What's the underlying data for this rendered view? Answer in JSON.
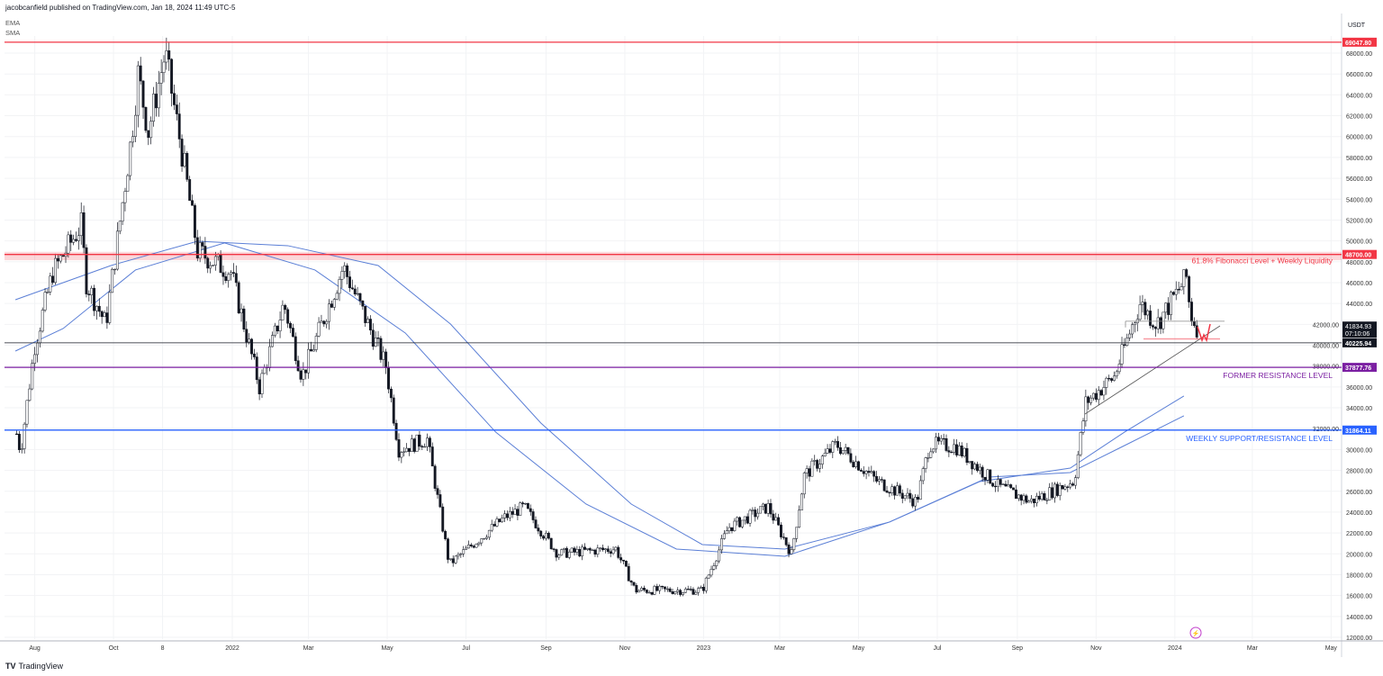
{
  "header": {
    "published": "jacobcanfield published on TradingView.com, Jan 18, 2024 11:49 UTC-5"
  },
  "legend": [
    "EMA",
    "SMA"
  ],
  "footer": {
    "logo_text": "TradingView",
    "logo_mark": "TV"
  },
  "colors": {
    "red": "#f23645",
    "purple": "#7b1fa2",
    "blue": "#2962ff",
    "ma": "#5b7fd6",
    "gray": "#787b86"
  },
  "chart_data": {
    "type": "candlestick",
    "currency": "USDT",
    "ylim": [
      12000,
      70000
    ],
    "y_ticks": [
      "68000.00",
      "66000.00",
      "64000.00",
      "62000.00",
      "60000.00",
      "58000.00",
      "56000.00",
      "54000.00",
      "52000.00",
      "50000.00",
      "48000.00",
      "46000.00",
      "44000.00",
      "42000.00",
      "40000.00",
      "38000.00",
      "36000.00",
      "34000.00",
      "32000.00",
      "30000.00",
      "28000.00",
      "26000.00",
      "24000.00",
      "22000.00",
      "20000.00",
      "18000.00",
      "16000.00",
      "14000.00",
      "12000.00"
    ],
    "x_ticks": [
      {
        "label": "Aug",
        "date": "2021-08-01"
      },
      {
        "label": "Oct",
        "date": "2021-10-01"
      },
      {
        "label": "8",
        "date": "2021-11-08"
      },
      {
        "label": "2022",
        "date": "2022-01-01"
      },
      {
        "label": "Mar",
        "date": "2022-03-01"
      },
      {
        "label": "May",
        "date": "2022-05-01"
      },
      {
        "label": "Jul",
        "date": "2022-07-01"
      },
      {
        "label": "Sep",
        "date": "2022-09-01"
      },
      {
        "label": "Nov",
        "date": "2022-11-01"
      },
      {
        "label": "2023",
        "date": "2023-01-01"
      },
      {
        "label": "Mar",
        "date": "2023-03-01"
      },
      {
        "label": "May",
        "date": "2023-05-01"
      },
      {
        "label": "Jul",
        "date": "2023-07-01"
      },
      {
        "label": "Sep",
        "date": "2023-09-01"
      },
      {
        "label": "Nov",
        "date": "2023-11-01"
      },
      {
        "label": "2024",
        "date": "2024-01-01"
      },
      {
        "label": "Mar",
        "date": "2024-03-01"
      },
      {
        "label": "May",
        "date": "2024-05-01"
      }
    ],
    "price_path": [
      [
        "2021-07-18",
        31500
      ],
      [
        "2021-07-21",
        29800
      ],
      [
        "2021-08-01",
        40000
      ],
      [
        "2021-08-15",
        47000
      ],
      [
        "2021-09-06",
        51500
      ],
      [
        "2021-09-10",
        46000
      ],
      [
        "2021-09-25",
        42000
      ],
      [
        "2021-10-15",
        60000
      ],
      [
        "2021-10-20",
        66000
      ],
      [
        "2021-10-28",
        60500
      ],
      [
        "2021-11-10",
        68000
      ],
      [
        "2021-11-25",
        57000
      ],
      [
        "2021-12-05",
        49000
      ],
      [
        "2021-12-31",
        47000
      ],
      [
        "2022-01-22",
        36000
      ],
      [
        "2022-02-10",
        44000
      ],
      [
        "2022-02-24",
        37000
      ],
      [
        "2022-03-28",
        47500
      ],
      [
        "2022-04-30",
        38000
      ],
      [
        "2022-05-10",
        30000
      ],
      [
        "2022-06-01",
        31000
      ],
      [
        "2022-06-18",
        19000
      ],
      [
        "2022-07-31",
        23500
      ],
      [
        "2022-08-15",
        24500
      ],
      [
        "2022-09-10",
        20000
      ],
      [
        "2022-10-25",
        20500
      ],
      [
        "2022-11-09",
        16500
      ],
      [
        "2022-12-31",
        16500
      ],
      [
        "2023-01-20",
        22500
      ],
      [
        "2023-02-20",
        24500
      ],
      [
        "2023-03-10",
        20000
      ],
      [
        "2023-03-20",
        27500
      ],
      [
        "2023-04-14",
        30500
      ],
      [
        "2023-05-15",
        27000
      ],
      [
        "2023-06-15",
        25000
      ],
      [
        "2023-06-25",
        30500
      ],
      [
        "2023-07-15",
        30300
      ],
      [
        "2023-08-17",
        26500
      ],
      [
        "2023-09-11",
        25000
      ],
      [
        "2023-10-15",
        27000
      ],
      [
        "2023-10-24",
        34500
      ],
      [
        "2023-11-15",
        37000
      ],
      [
        "2023-12-05",
        44000
      ],
      [
        "2023-12-18",
        42000
      ],
      [
        "2024-01-10",
        46500
      ],
      [
        "2024-01-13",
        43000
      ],
      [
        "2024-01-18",
        41800
      ]
    ],
    "series": [
      {
        "name": "EMA",
        "points": [
          [
            "2021-07-17",
            44360
          ],
          [
            "2021-09-29",
            47640
          ],
          [
            "2021-12-05",
            49970
          ],
          [
            "2022-02-13",
            49540
          ],
          [
            "2022-04-24",
            47640
          ],
          [
            "2022-06-19",
            42030
          ],
          [
            "2022-08-28",
            32540
          ],
          [
            "2022-11-06",
            24770
          ],
          [
            "2022-12-31",
            20890
          ],
          [
            "2023-03-05",
            20460
          ],
          [
            "2023-05-25",
            23050
          ],
          [
            "2023-08-03",
            26930
          ],
          [
            "2023-10-12",
            28220
          ],
          [
            "2023-11-23",
            31670
          ],
          [
            "2024-01-08",
            35130
          ]
        ]
      },
      {
        "name": "SMA",
        "points": [
          [
            "2021-07-17",
            39440
          ],
          [
            "2021-08-23",
            41600
          ],
          [
            "2021-10-18",
            47210
          ],
          [
            "2021-12-26",
            49800
          ],
          [
            "2022-03-06",
            47210
          ],
          [
            "2022-05-15",
            41170
          ],
          [
            "2022-07-24",
            31670
          ],
          [
            "2022-10-02",
            24770
          ],
          [
            "2022-12-11",
            20460
          ],
          [
            "2023-03-05",
            19770
          ],
          [
            "2023-05-25",
            23050
          ],
          [
            "2023-08-10",
            27360
          ],
          [
            "2023-10-12",
            27790
          ],
          [
            "2023-11-23",
            30380
          ],
          [
            "2024-01-08",
            33230
          ]
        ]
      }
    ],
    "levels": [
      {
        "price": 69047.8,
        "label": "69047.80",
        "color": "#f23645"
      },
      {
        "price": 48700.0,
        "label": "48700.00",
        "color": "#f23645",
        "note": "61.8% Fibonacci Level + Weekly Liquidity"
      },
      {
        "price": 40225.94,
        "label": "40225.94",
        "color": "#131722"
      },
      {
        "price": 37877.76,
        "label": "37877.76",
        "color": "#7b1fa2",
        "note": "FORMER RESISTANCE LEVEL"
      },
      {
        "price": 31864.11,
        "label": "31864.11",
        "color": "#2962ff",
        "note": "WEEKLY SUPPORT/RESISTANCE LEVEL"
      }
    ],
    "last_price": {
      "price": 41834.93,
      "label": "41834.93",
      "countdown": "07:10:06"
    }
  }
}
